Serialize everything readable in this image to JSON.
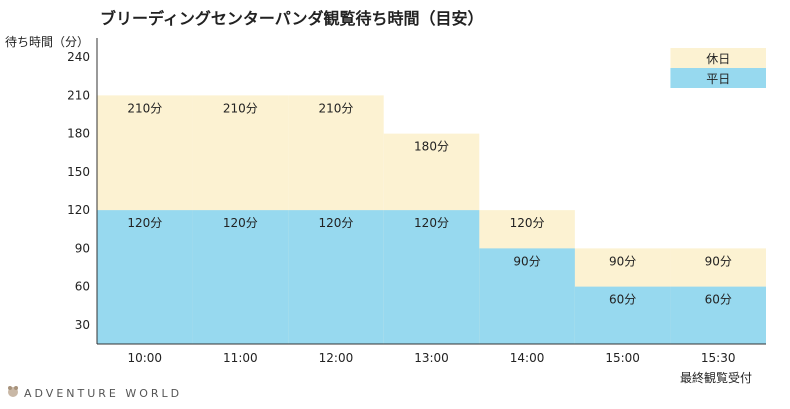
{
  "chart_data": {
    "type": "bar",
    "title": "ブリーディングセンターパンダ観覧待ち時間（目安）",
    "ylabel": "待ち時間（分）",
    "xlabel": "",
    "categories": [
      "10:00",
      "11:00",
      "12:00",
      "13:00",
      "14:00",
      "15:00",
      "15:30"
    ],
    "category_note": "最終観覧受付",
    "yticks": [
      30,
      60,
      90,
      120,
      150,
      180,
      210,
      240
    ],
    "ylim": [
      15,
      255
    ],
    "grid": false,
    "legend_position": "top-right",
    "series": [
      {
        "name": "休日",
        "values": [
          210,
          210,
          210,
          180,
          120,
          90,
          90
        ],
        "color": "#fcf2d2",
        "labels": [
          "210分",
          "210分",
          "210分",
          "180分",
          "120分",
          "90分",
          "90分"
        ]
      },
      {
        "name": "平日",
        "values": [
          120,
          120,
          120,
          120,
          90,
          60,
          60
        ],
        "color": "#97d9ef",
        "labels": [
          "120分",
          "120分",
          "120分",
          "120分",
          "90分",
          "60分",
          "60分"
        ]
      }
    ]
  },
  "footer": {
    "logo_text": "ADVENTURE WORLD"
  }
}
